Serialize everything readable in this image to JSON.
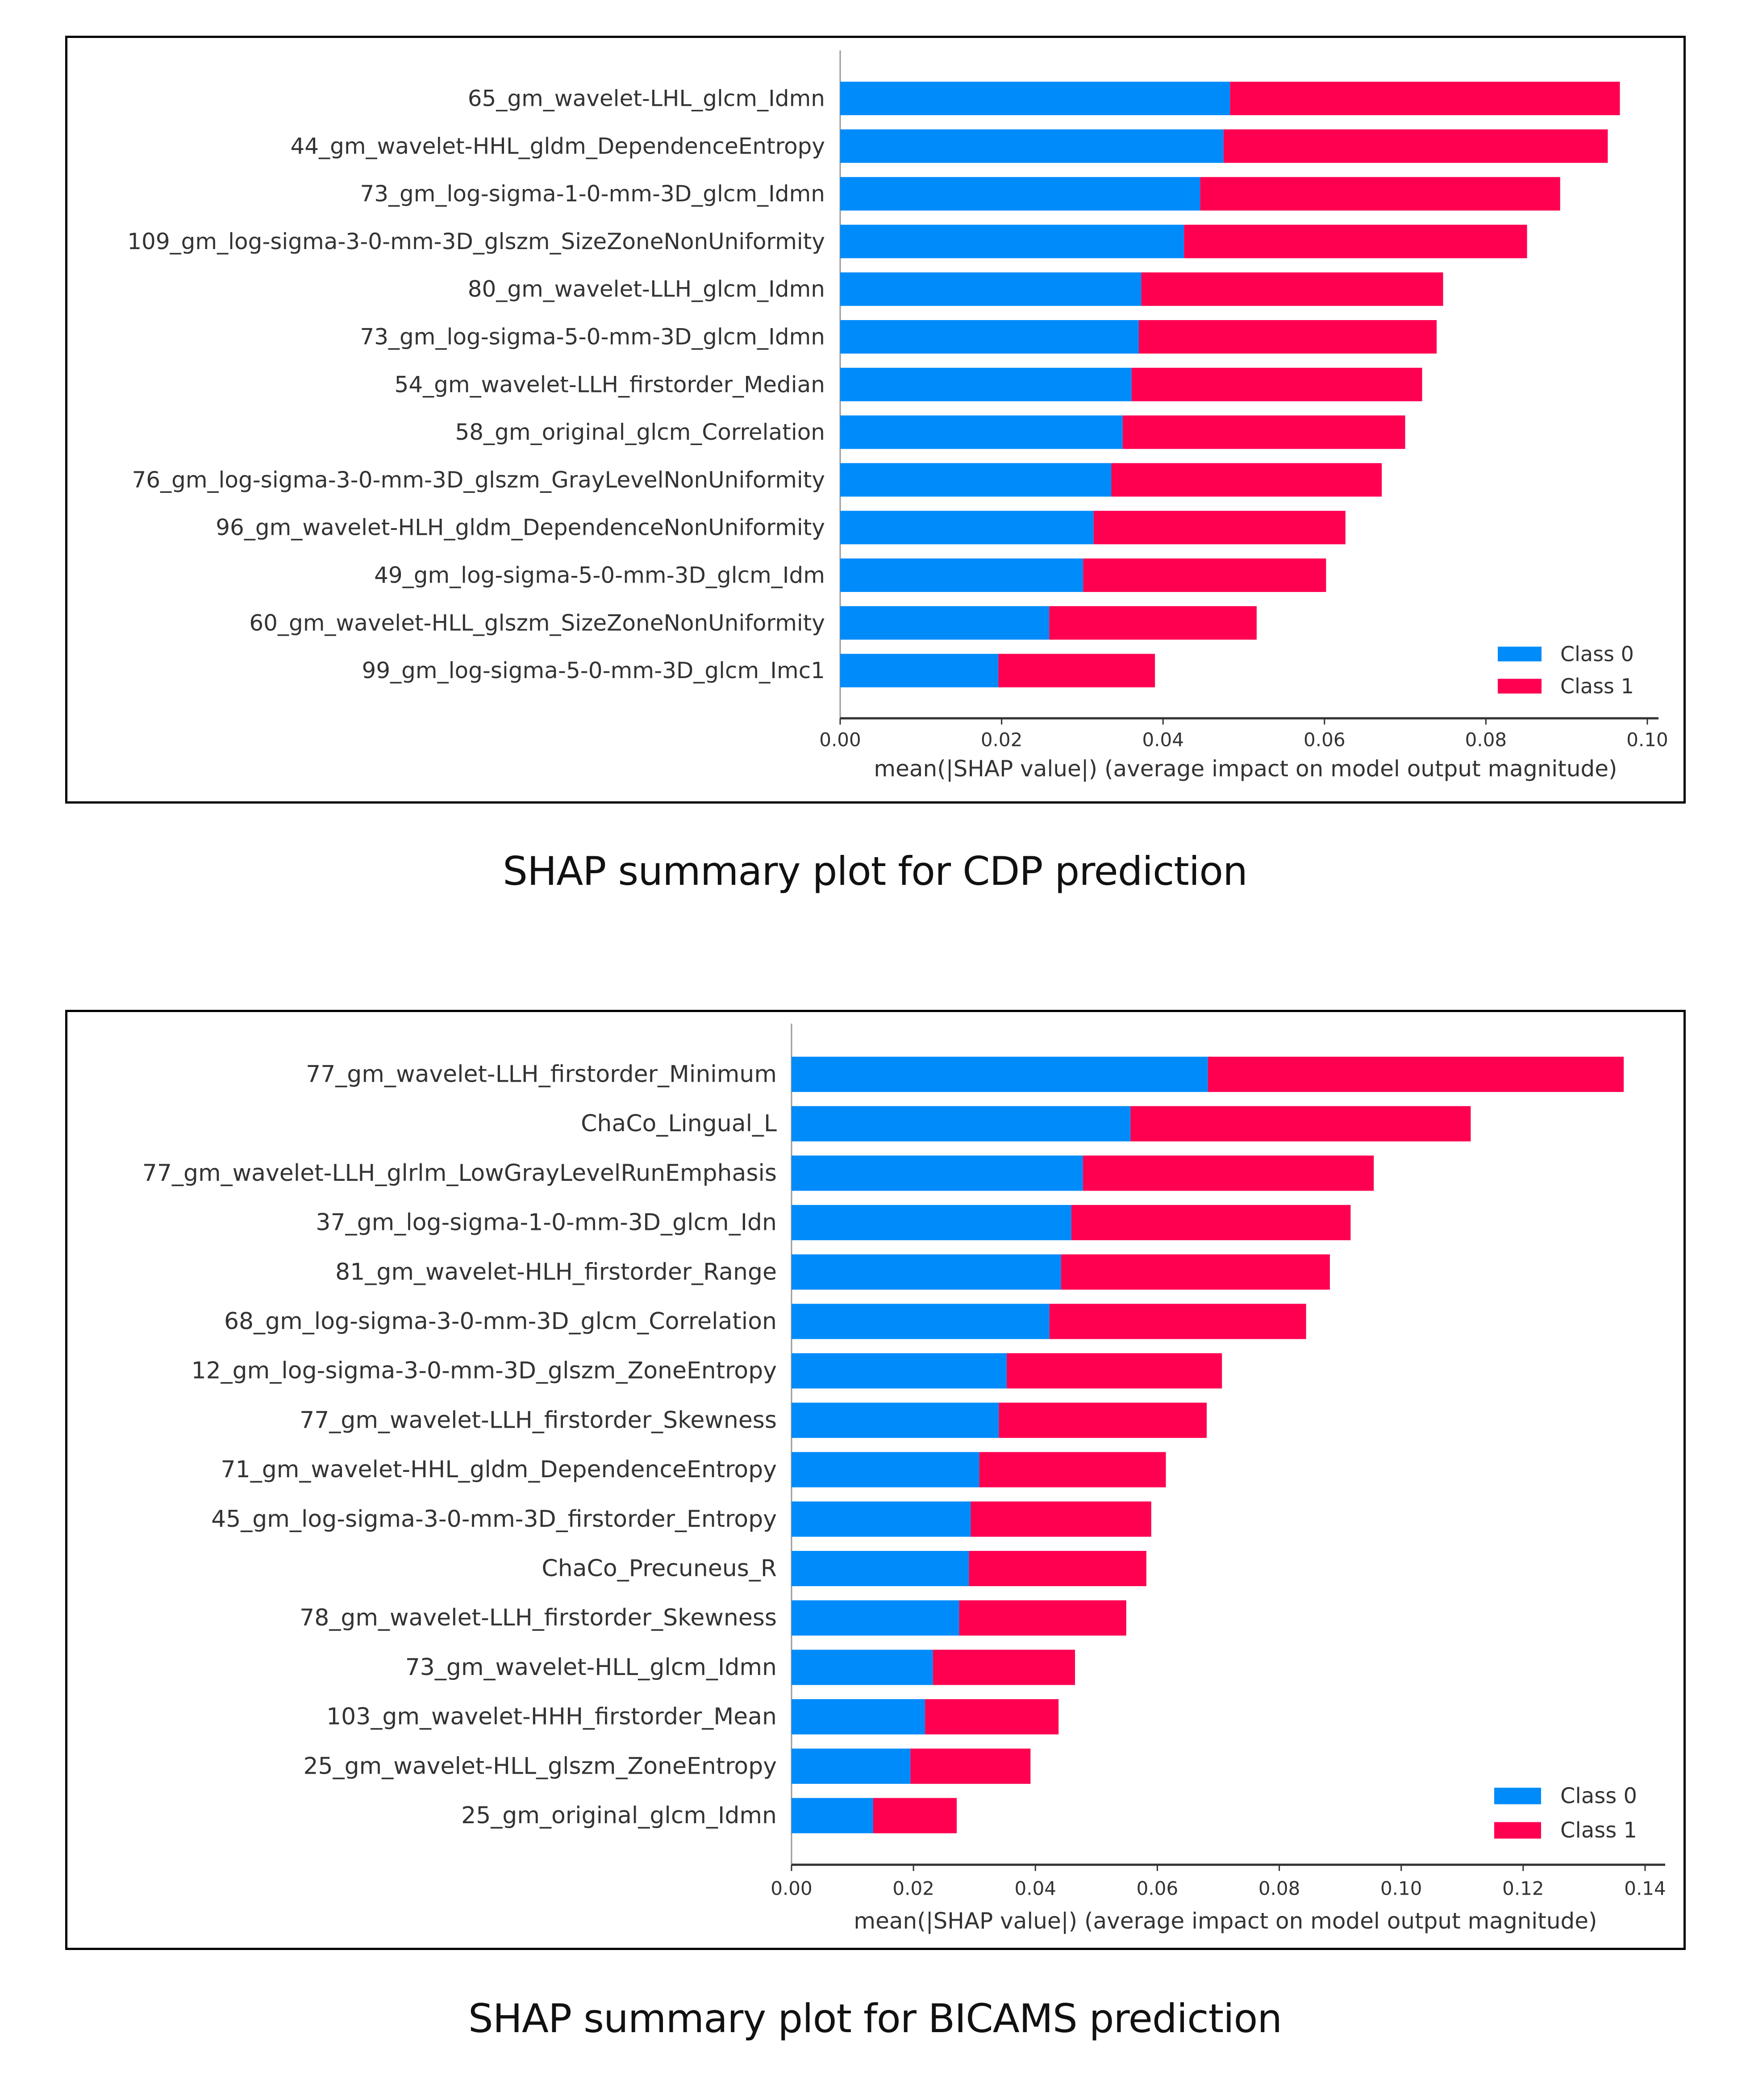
{
  "colors": {
    "class0": "#008BFB",
    "class1": "#FF0051",
    "axis": "#333333",
    "text": "#333333"
  },
  "captions": {
    "cdp": "SHAP summary plot for CDP prediction",
    "bicams": "SHAP summary plot for BICAMS prediction"
  },
  "chart_data": [
    {
      "type": "bar",
      "orientation": "horizontal",
      "stacked": true,
      "title": "SHAP summary plot for CDP prediction",
      "xlabel": "mean(|SHAP value|) (average impact on model output magnitude)",
      "ylabel": "",
      "xlim": [
        0,
        0.1
      ],
      "xticks": [
        "0.00",
        "0.02",
        "0.04",
        "0.06",
        "0.08",
        "0.10"
      ],
      "legend": {
        "placement": "bottom-right",
        "entries": [
          "Class 0",
          "Class 1"
        ]
      },
      "grid": false,
      "categories": [
        "65_gm_wavelet-LHL_glcm_Idmn",
        "44_gm_wavelet-HHL_gldm_DependenceEntropy",
        "73_gm_log-sigma-1-0-mm-3D_glcm_Idmn",
        "109_gm_log-sigma-3-0-mm-3D_glszm_SizeZoneNonUniformity",
        "80_gm_wavelet-LLH_glcm_Idmn",
        "73_gm_log-sigma-5-0-mm-3D_glcm_Idmn",
        "54_gm_wavelet-LLH_firstorder_Median",
        "58_gm_original_glcm_Correlation",
        "76_gm_log-sigma-3-0-mm-3D_glszm_GrayLevelNonUniformity",
        "96_gm_wavelet-HLH_gldm_DependenceNonUniformity",
        "49_gm_log-sigma-5-0-mm-3D_glcm_Idm",
        "60_gm_wavelet-HLL_glszm_SizeZoneNonUniformity",
        "99_gm_log-sigma-5-0-mm-3D_glcm_Imc1"
      ],
      "series": [
        {
          "name": "Class 0",
          "values": [
            0.0483,
            0.0475,
            0.0446,
            0.0426,
            0.0373,
            0.037,
            0.0361,
            0.035,
            0.0336,
            0.0314,
            0.0301,
            0.0259,
            0.0196
          ]
        },
        {
          "name": "Class 1",
          "values": [
            0.0483,
            0.0476,
            0.0446,
            0.0425,
            0.0374,
            0.0369,
            0.036,
            0.035,
            0.0335,
            0.0312,
            0.0301,
            0.0257,
            0.0194
          ]
        }
      ]
    },
    {
      "type": "bar",
      "orientation": "horizontal",
      "stacked": true,
      "title": "SHAP summary plot for BICAMS prediction",
      "xlabel": "mean(|SHAP value|) (average impact on model output magnitude)",
      "ylabel": "",
      "xlim": [
        0,
        0.14
      ],
      "xticks": [
        "0.00",
        "0.02",
        "0.04",
        "0.06",
        "0.08",
        "0.10",
        "0.12",
        "0.14"
      ],
      "legend": {
        "placement": "bottom-right",
        "entries": [
          "Class 0",
          "Class 1"
        ]
      },
      "grid": false,
      "categories": [
        "77_gm_wavelet-LLH_firstorder_Minimum",
        "ChaCo_Lingual_L",
        "77_gm_wavelet-LLH_glrlm_LowGrayLevelRunEmphasis",
        "37_gm_log-sigma-1-0-mm-3D_glcm_Idn",
        "81_gm_wavelet-HLH_firstorder_Range",
        "68_gm_log-sigma-3-0-mm-3D_glcm_Correlation",
        "12_gm_log-sigma-3-0-mm-3D_glszm_ZoneEntropy",
        "77_gm_wavelet-LLH_firstorder_Skewness",
        "71_gm_wavelet-HHL_gldm_DependenceEntropy",
        "45_gm_log-sigma-3-0-mm-3D_firstorder_Entropy",
        "ChaCo_Precuneus_R",
        "78_gm_wavelet-LLH_firstorder_Skewness",
        "73_gm_wavelet-HLL_glcm_Idmn",
        "103_gm_wavelet-HHH_firstorder_Mean",
        "25_gm_wavelet-HLL_glszm_ZoneEntropy",
        "25_gm_original_glcm_Idmn"
      ],
      "series": [
        {
          "name": "Class 0",
          "values": [
            0.0683,
            0.0556,
            0.0478,
            0.0459,
            0.0442,
            0.0423,
            0.0353,
            0.034,
            0.0308,
            0.0294,
            0.0291,
            0.0275,
            0.0232,
            0.0219,
            0.0195,
            0.0134
          ]
        },
        {
          "name": "Class 1",
          "values": [
            0.0682,
            0.0558,
            0.0477,
            0.0458,
            0.0441,
            0.0421,
            0.0353,
            0.0341,
            0.0306,
            0.0296,
            0.0291,
            0.0274,
            0.0233,
            0.0219,
            0.0197,
            0.0137
          ]
        }
      ]
    }
  ]
}
